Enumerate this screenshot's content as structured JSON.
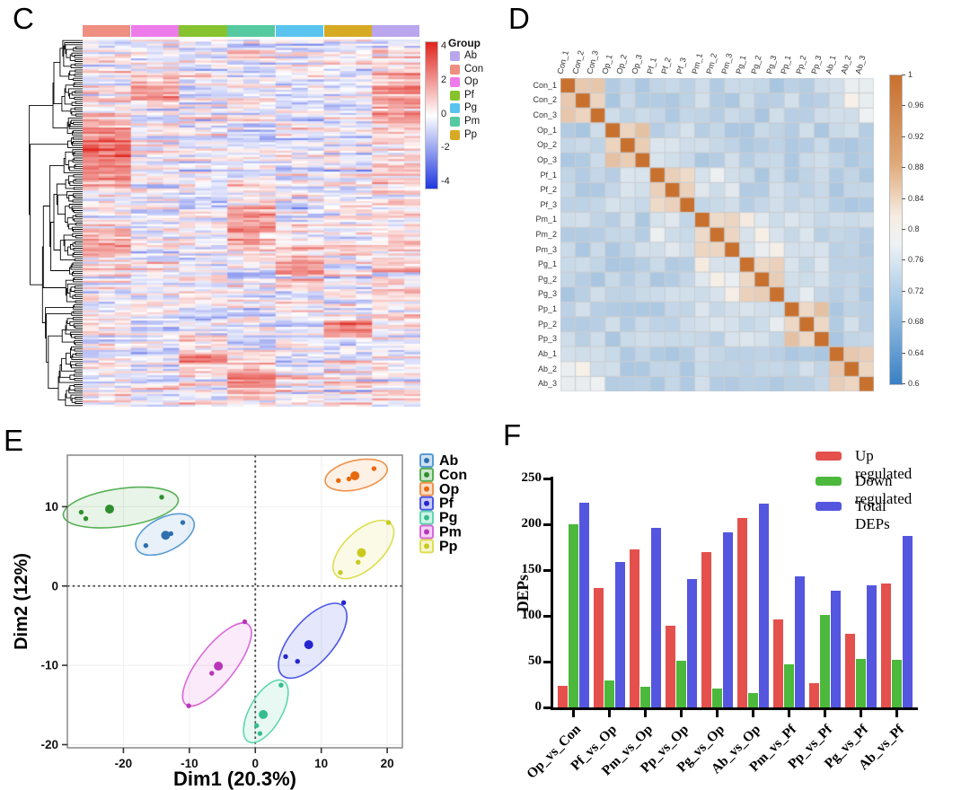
{
  "panel_labels": {
    "c": "C",
    "d": "D",
    "e": "E",
    "f": "F"
  },
  "chart_data": [
    {
      "panel": "C",
      "type": "heatmap",
      "description": "Hierarchically clustered protein expression heatmap (row dendrogram, 21 sample columns in 7 groups, z-score scale -4 to 4)",
      "column_groups": [
        "Con",
        "Op",
        "Pf",
        "Pm",
        "Pg",
        "Pp",
        "Ab"
      ],
      "columns_per_group": 3,
      "group_colors": {
        "Con": "#ee8f82",
        "Op": "#ee7bea",
        "Pf": "#86c32e",
        "Pm": "#55c9a0",
        "Pg": "#5ac4ee",
        "Pp": "#d7aa24",
        "Ab": "#b9a6ec"
      },
      "legend_title": "Group",
      "legend_items": [
        {
          "label": "Ab",
          "color": "#b9a6ec"
        },
        {
          "label": "Con",
          "color": "#ee8f82"
        },
        {
          "label": "Op",
          "color": "#ee7bea"
        },
        {
          "label": "Pf",
          "color": "#86c32e"
        },
        {
          "label": "Pg",
          "color": "#5ac4ee"
        },
        {
          "label": "Pm",
          "color": "#55c9a0"
        },
        {
          "label": "Pp",
          "color": "#d7aa24"
        }
      ],
      "colorbar_ticks": [
        4,
        2,
        0,
        -2,
        -4
      ],
      "scale_colors": {
        "positive": "#e0241c",
        "zero": "#ffffff",
        "negative": "#2038df"
      },
      "gen": {
        "rows": 175,
        "seed": 11,
        "row_streak": 0.8,
        "cell_noise": 0.55,
        "base": -0.12,
        "bumps": [
          [
            0,
            0.3,
            0.1,
            2.6
          ],
          [
            0,
            0.55,
            0.05,
            1.4
          ],
          [
            1,
            0.13,
            0.03,
            2.0
          ],
          [
            3,
            0.5,
            0.06,
            2.0
          ],
          [
            4,
            0.62,
            0.04,
            1.8
          ],
          [
            5,
            0.78,
            0.04,
            1.8
          ],
          [
            2,
            0.87,
            0.05,
            1.6
          ],
          [
            3,
            0.93,
            0.04,
            1.9
          ],
          [
            6,
            0.15,
            0.1,
            1.5
          ],
          [
            6,
            0.5,
            0.25,
            0.7
          ]
        ]
      }
    },
    {
      "panel": "D",
      "type": "heatmap",
      "description": "Sample-to-sample correlation matrix, diagonal = 1",
      "samples": [
        "Con_1",
        "Con_2",
        "Con_3",
        "Op_1",
        "Op_2",
        "Op_3",
        "Pf_1",
        "Pf_2",
        "Pf_3",
        "Pm_1",
        "Pm_2",
        "Pm_3",
        "Pg_1",
        "Pg_2",
        "Pg_3",
        "Pp_1",
        "Pp_2",
        "Pp_3",
        "Ab_1",
        "Ab_2",
        "Ab_3"
      ],
      "value_range": [
        0.6,
        1
      ],
      "colorbar_ticks": [
        "1",
        "0.96",
        "0.92",
        "0.88",
        "0.84",
        "0.8",
        "0.76",
        "0.72",
        "0.68",
        "0.64",
        "0.6"
      ],
      "diag_value": 1.0,
      "scale_colors": {
        "high": "#c8702e",
        "mid": "#f6f1ea",
        "low": "#3a80c4"
      },
      "gradient_stops": [
        [
          "#c8702e",
          0
        ],
        [
          "#dfa877",
          28
        ],
        [
          "#f6ede4",
          46
        ],
        [
          "#edf1f5",
          55
        ],
        [
          "#9ec4e4",
          75
        ],
        [
          "#3a80c4",
          100
        ]
      ],
      "gen": {
        "seed": 5,
        "within_base": 0.845,
        "within_noise": 0.035,
        "between_base": 0.742,
        "between_noise": 0.05,
        "affinity": [
          [
            0,
            6,
            0.035
          ],
          [
            2,
            3,
            0.03
          ],
          [
            3,
            4,
            0.04
          ],
          [
            4,
            5,
            0.03
          ],
          [
            3,
            5,
            0.02
          ],
          [
            1,
            2,
            0.015
          ]
        ]
      }
    },
    {
      "panel": "E",
      "type": "scatter",
      "description": "PCA score plot with group concentration ellipses and centroids",
      "xlabel": "Dim1 (20.3%)",
      "ylabel": "Dim2 (12%)",
      "xticks": [
        -20,
        -10,
        0,
        10,
        20
      ],
      "yticks": [
        10,
        0,
        -10,
        -20
      ],
      "xlim": [
        -28.5,
        22.3
      ],
      "ylim": [
        -20.4,
        16.5
      ],
      "groups": [
        {
          "name": "Ab",
          "dot": "#2e6fae",
          "edge": "#5b9bd5",
          "points": [
            [
              -16.6,
              5.1
            ],
            [
              -12.8,
              6.6
            ],
            [
              -11.0,
              8.0
            ]
          ],
          "centroid": [
            -13.6,
            6.4
          ],
          "ellipse": [
            -13.7,
            6.5,
            4.8,
            2.3,
            27
          ]
        },
        {
          "name": "Con",
          "dot": "#2f8f2f",
          "edge": "#55b055",
          "points": [
            [
              -26.4,
              9.3
            ],
            [
              -25.7,
              8.5
            ],
            [
              -14.2,
              11.2
            ]
          ],
          "centroid": [
            -22.1,
            9.7
          ],
          "ellipse": [
            -20.4,
            9.9,
            8.8,
            2.6,
            8
          ]
        },
        {
          "name": "Op",
          "dot": "#e8690e",
          "edge": "#f0924a",
          "points": [
            [
              12.6,
              13.3
            ],
            [
              14.2,
              13.5
            ],
            [
              18.0,
              14.8
            ]
          ],
          "centroid": [
            15.1,
            13.9
          ],
          "ellipse": [
            15.3,
            14.0,
            4.8,
            2.0,
            13
          ]
        },
        {
          "name": "Pf",
          "dot": "#2525cf",
          "edge": "#4a55e8",
          "points": [
            [
              13.4,
              -2.1
            ],
            [
              4.6,
              -8.9
            ],
            [
              6.4,
              -9.5
            ]
          ],
          "centroid": [
            8.1,
            -7.4
          ],
          "ellipse": [
            8.7,
            -6.9,
            7.0,
            2.9,
            49
          ]
        },
        {
          "name": "Pg",
          "dot": "#35bd8d",
          "edge": "#5fd6ae",
          "points": [
            [
              3.9,
              -12.5
            ],
            [
              0.2,
              -17.6
            ],
            [
              0.7,
              -18.6
            ]
          ],
          "centroid": [
            1.2,
            -16.2
          ],
          "ellipse": [
            1.6,
            -15.8,
            5.3,
            2.2,
            60
          ]
        },
        {
          "name": "Pm",
          "dot": "#b836b8",
          "edge": "#d969d9",
          "points": [
            [
              -1.6,
              -4.5
            ],
            [
              -6.6,
              -11.0
            ],
            [
              -10.1,
              -15.1
            ]
          ],
          "centroid": [
            -5.6,
            -10.1
          ],
          "ellipse": [
            -5.8,
            -9.9,
            7.7,
            2.5,
            52
          ]
        },
        {
          "name": "Pp",
          "dot": "#c9c91e",
          "edge": "#dede52",
          "points": [
            [
              12.9,
              1.7
            ],
            [
              15.6,
              3.0
            ],
            [
              20.2,
              8.0
            ]
          ],
          "centroid": [
            16.1,
            4.2
          ],
          "ellipse": [
            16.4,
            4.6,
            5.7,
            2.6,
            43
          ]
        }
      ],
      "legend_order": [
        "Ab",
        "Con",
        "Op",
        "Pf",
        "Pg",
        "Pm",
        "Pp"
      ]
    },
    {
      "panel": "F",
      "type": "bar",
      "description": "Differentially expressed proteins per pairwise comparison",
      "ylabel": "DEPs",
      "categories": [
        "Op_vs_Con",
        "Pf_vs_Op",
        "Pm_vs_Op",
        "Pp_vs_Op",
        "Pg_vs_Op",
        "Ab_vs_Op",
        "Pm_vs_Pf",
        "Pp_vs_Pf",
        "Pg_vs_Pf",
        "Ab_vs_Pf"
      ],
      "series": [
        {
          "name": "Up regulated",
          "color": "#e4504c",
          "values": [
            24,
            130,
            173,
            89,
            170,
            207,
            96,
            26,
            80,
            135
          ]
        },
        {
          "name": "Down regulated",
          "color": "#4cb83c",
          "values": [
            200,
            29,
            23,
            51,
            21,
            16,
            47,
            101,
            53,
            52
          ]
        },
        {
          "name": "Total DEPs",
          "color": "#5456e0",
          "values": [
            224,
            159,
            196,
            140,
            191,
            223,
            143,
            127,
            133,
            187
          ]
        }
      ],
      "yticks": [
        0,
        50,
        100,
        150,
        200,
        250
      ],
      "ylim": [
        0,
        250
      ]
    }
  ]
}
